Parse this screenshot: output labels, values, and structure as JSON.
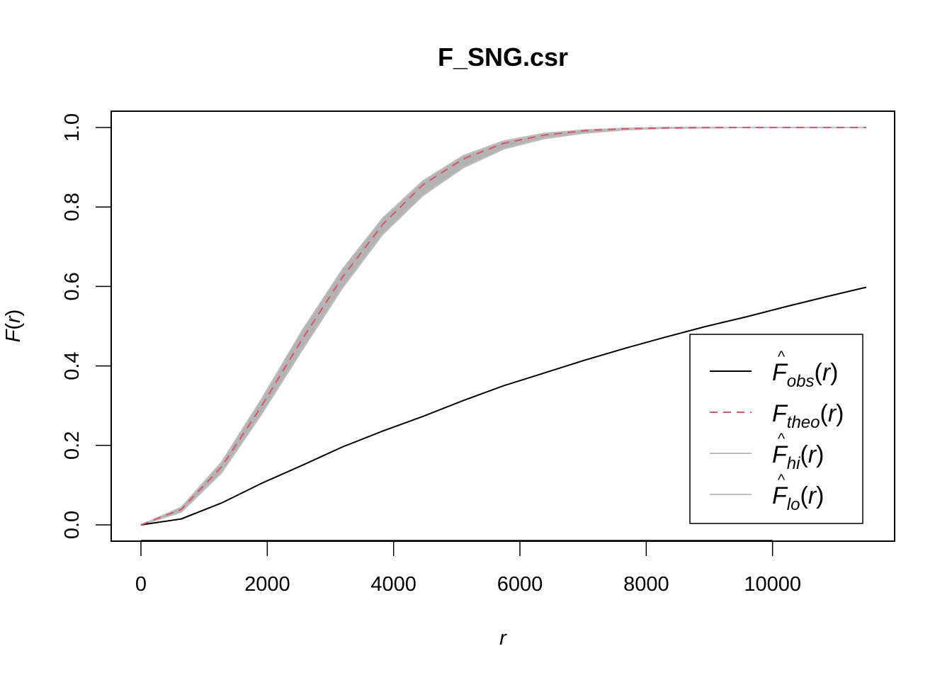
{
  "chart_data": {
    "type": "line",
    "title": "F_SNG.csr",
    "xlabel": "r",
    "ylabel": {
      "main": "F",
      "open": "(",
      "arg": "r",
      "close": ")"
    },
    "xlim": [
      0,
      11500
    ],
    "ylim": [
      0,
      1
    ],
    "x_ticks": [
      0,
      2000,
      4000,
      6000,
      8000,
      10000
    ],
    "x_tick_labels": [
      "0",
      "2000",
      "4000",
      "6000",
      "8000",
      "10000"
    ],
    "y_ticks": [
      0,
      0.2,
      0.4,
      0.6,
      0.8,
      1.0
    ],
    "y_tick_labels": [
      "0.0",
      "0.2",
      "0.4",
      "0.6",
      "0.8",
      "1.0"
    ],
    "grid": false,
    "legend_position": "bottom-right",
    "x": [
      0,
      638,
      1276,
      1914,
      2552,
      3190,
      3828,
      4466,
      5104,
      5742,
      6380,
      7018,
      7656,
      8294,
      8932,
      9570,
      10208,
      10846,
      11484
    ],
    "series": [
      {
        "key": "obs",
        "label": {
          "main": "F",
          "hat": "^",
          "sub": "obs",
          "open": "(",
          "arg": "r",
          "close": ")"
        },
        "color": "#000000",
        "dash": "solid",
        "values": [
          0,
          0.015,
          0.055,
          0.105,
          0.15,
          0.196,
          0.236,
          0.273,
          0.313,
          0.35,
          0.382,
          0.414,
          0.444,
          0.472,
          0.499,
          0.523,
          0.549,
          0.574,
          0.598
        ]
      },
      {
        "key": "theo",
        "label": {
          "main": "F",
          "hat": "",
          "sub": "theo",
          "open": "(",
          "arg": "r",
          "close": ")"
        },
        "color": "#DF536B",
        "dash": "dashed",
        "values": [
          0,
          0.039,
          0.146,
          0.3,
          0.467,
          0.623,
          0.756,
          0.856,
          0.921,
          0.96,
          0.981,
          0.992,
          0.997,
          0.999,
          1.0,
          1.0,
          1.0,
          1.0,
          1.0
        ]
      },
      {
        "key": "hi",
        "label": {
          "main": "F",
          "hat": "^",
          "sub": "hi",
          "open": "(",
          "arg": "r",
          "close": ")"
        },
        "color": "#BEBEBE",
        "dash": "solid",
        "values": [
          0,
          0.044,
          0.158,
          0.318,
          0.489,
          0.643,
          0.772,
          0.866,
          0.929,
          0.966,
          0.985,
          0.994,
          0.998,
          1.0,
          1.0,
          1.0,
          1.0,
          1.0,
          1.0
        ]
      },
      {
        "key": "lo",
        "label": {
          "main": "F",
          "hat": "^",
          "sub": "lo",
          "open": "(",
          "arg": "r",
          "close": ")"
        },
        "color": "#BEBEBE",
        "dash": "solid",
        "values": [
          0,
          0.032,
          0.131,
          0.28,
          0.44,
          0.596,
          0.731,
          0.829,
          0.899,
          0.946,
          0.972,
          0.986,
          0.994,
          0.998,
          0.999,
          1.0,
          1.0,
          1.0,
          1.0
        ]
      }
    ],
    "envelope_color": "#B3B3B3"
  }
}
